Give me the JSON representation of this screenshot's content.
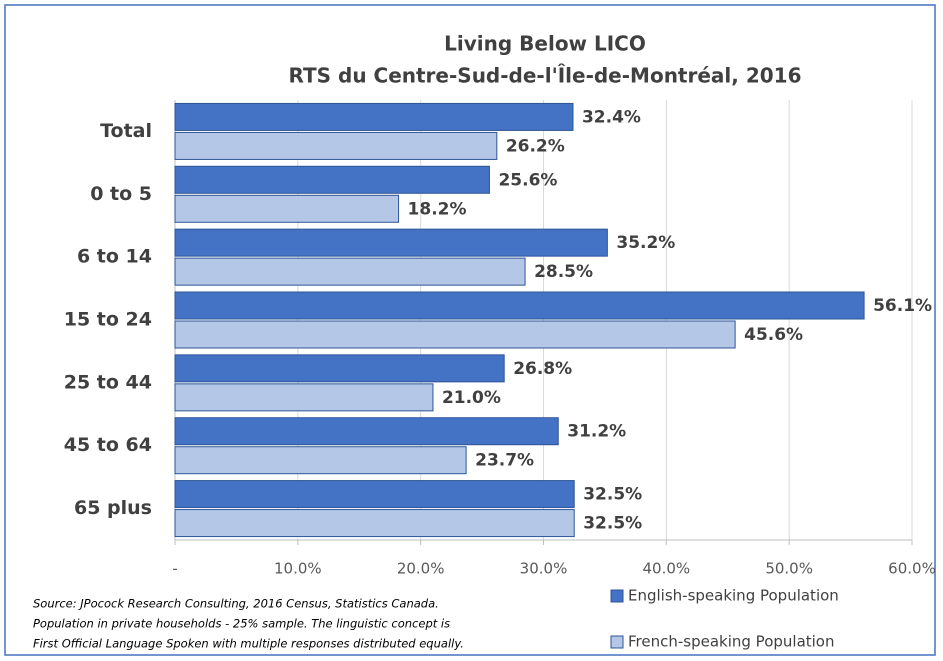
{
  "chart_data": {
    "type": "bar",
    "orientation": "horizontal",
    "title": "Living Below LICO",
    "subtitle": "RTS du Centre-Sud-de-l'Île-de-Montréal, 2016",
    "categories": [
      "Total",
      "0 to 5",
      "6 to 14",
      "15 to 24",
      "25 to 44",
      "45 to 64",
      "65 plus"
    ],
    "series": [
      {
        "name": "English-speaking Population",
        "color": "#4472c4",
        "values": [
          32.4,
          25.6,
          35.2,
          56.1,
          26.8,
          31.2,
          32.5
        ],
        "value_labels": [
          "32.4%",
          "25.6%",
          "35.2%",
          "56.1%",
          "26.8%",
          "31.2%",
          "32.5%"
        ]
      },
      {
        "name": "French-speaking Population",
        "color": "#b4c7e7",
        "values": [
          26.2,
          18.2,
          28.5,
          45.6,
          21.0,
          23.7,
          32.5
        ],
        "value_labels": [
          "26.2%",
          "18.2%",
          "28.5%",
          "45.6%",
          "21.0%",
          "23.7%",
          "32.5%"
        ]
      }
    ],
    "xlim": [
      0,
      60
    ],
    "xticks": [
      {
        "value": 0,
        "label": "-"
      },
      {
        "value": 10,
        "label": "10.0%"
      },
      {
        "value": 20,
        "label": "20.0%"
      },
      {
        "value": 30,
        "label": "30.0%"
      },
      {
        "value": 40,
        "label": "40.0%"
      },
      {
        "value": 50,
        "label": "50.0%"
      },
      {
        "value": 60,
        "label": "60.0%"
      }
    ],
    "grid": true,
    "legend": "bottom-right",
    "source": [
      "Source: JPocock Research Consulting, 2016 Census, Statistics Canada.",
      "Population in private households - 25% sample. The linguistic concept is",
      "First Official Language Spoken with multiple responses distributed equally."
    ]
  }
}
